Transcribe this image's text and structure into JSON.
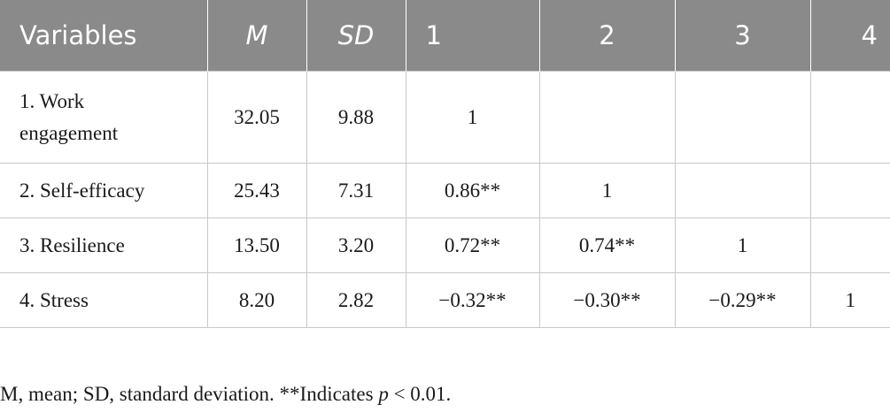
{
  "table": {
    "headers": [
      "Variables",
      "M",
      "SD",
      "1",
      "2",
      "3",
      "4"
    ],
    "rows": [
      {
        "variable": "1. Work engagement",
        "m": "32.05",
        "sd": "9.88",
        "c1": "1",
        "c2": "",
        "c3": "",
        "c4": ""
      },
      {
        "variable": "2. Self-efficacy",
        "m": "25.43",
        "sd": "7.31",
        "c1": "0.86**",
        "c2": "1",
        "c3": "",
        "c4": ""
      },
      {
        "variable": "3. Resilience",
        "m": "13.50",
        "sd": "3.20",
        "c1": "0.72**",
        "c2": "0.74**",
        "c3": "1",
        "c4": ""
      },
      {
        "variable": "4. Stress",
        "m": "8.20",
        "sd": "2.82",
        "c1": "−0.32**",
        "c2": "−0.30**",
        "c3": "−0.29**",
        "c4": "1"
      }
    ]
  },
  "note": {
    "main": "M, mean; SD, standard deviation. **Indicates ",
    "p_symbol": "p",
    "threshold": " < 0.01."
  }
}
